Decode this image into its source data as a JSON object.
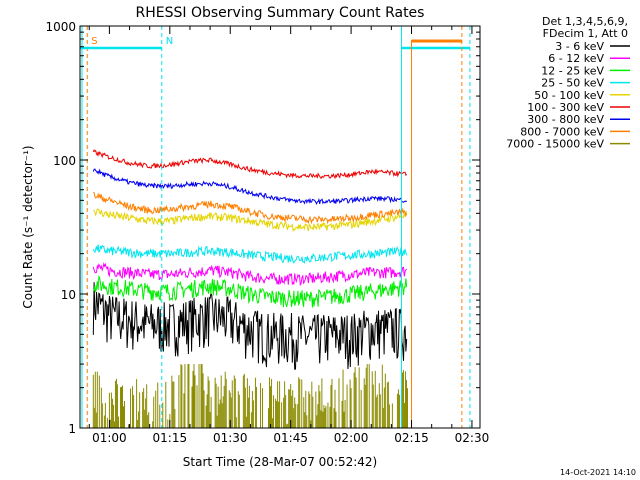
{
  "chart_data": {
    "type": "line",
    "title": "RHESSI Observing Summary Count Rates",
    "xlabel": "Start Time (28-Mar-07 00:52:42)",
    "ylabel": "Count Rate (s⁻¹ detector⁻¹)",
    "ylog": true,
    "ylim": [
      1,
      1000
    ],
    "xlim": [
      "00:52:42",
      "02:32:00"
    ],
    "x_ticks": [
      "01:00",
      "01:15",
      "01:30",
      "01:45",
      "02:00",
      "02:15",
      "02:30"
    ],
    "y_ticks": [
      "1",
      "10",
      "100",
      "1000"
    ],
    "legend_header": [
      "Det 1,3,4,5,6,9,",
      "FDecim 1, Att 0"
    ],
    "legend_position": "right",
    "markers": [
      {
        "label": "S",
        "time": "00:54:30",
        "color": "#ff7f00"
      },
      {
        "label": "N",
        "time": "01:13:00",
        "color": "#00e5ee"
      }
    ],
    "timestamp": "14-Oct-2021 14:10",
    "series": [
      {
        "name": "3 - 6 keV",
        "color": "#000000",
        "x": [
          "00:56",
          "01:00",
          "01:05",
          "01:10",
          "01:15",
          "01:20",
          "01:25",
          "01:30",
          "01:35",
          "01:40",
          "01:45",
          "01:50",
          "01:55",
          "02:00",
          "02:05",
          "02:10",
          "02:14"
        ],
        "values": [
          9,
          7,
          6.5,
          6,
          6,
          6.5,
          7,
          6.5,
          5.5,
          5,
          5,
          4.8,
          5,
          5,
          5.5,
          5.5,
          5.5
        ]
      },
      {
        "name": "6 - 12 keV",
        "color": "#ff00ff",
        "x": [
          "00:56",
          "01:00",
          "01:05",
          "01:10",
          "01:15",
          "01:20",
          "01:25",
          "01:30",
          "01:35",
          "01:40",
          "01:45",
          "01:50",
          "01:55",
          "02:00",
          "02:05",
          "02:10",
          "02:14"
        ],
        "values": [
          16,
          15,
          14.5,
          14,
          14,
          14.5,
          15,
          14.5,
          13.5,
          13,
          13,
          13,
          13.5,
          14,
          14.5,
          14.5,
          15
        ]
      },
      {
        "name": "12 - 25 keV",
        "color": "#00ee00",
        "x": [
          "00:56",
          "01:00",
          "01:05",
          "01:10",
          "01:15",
          "01:20",
          "01:25",
          "01:30",
          "01:35",
          "01:40",
          "01:45",
          "01:50",
          "01:55",
          "02:00",
          "02:05",
          "02:10",
          "02:14"
        ],
        "values": [
          12,
          11.5,
          11,
          10.5,
          10.5,
          11,
          11.5,
          11,
          10,
          9.5,
          9.3,
          9.3,
          9.6,
          10,
          10.5,
          11,
          11.5
        ]
      },
      {
        "name": "25 - 50 keV",
        "color": "#00e5ee",
        "x": [
          "00:56",
          "01:00",
          "01:05",
          "01:10",
          "01:15",
          "01:20",
          "01:25",
          "01:30",
          "01:35",
          "01:40",
          "01:45",
          "01:50",
          "01:55",
          "02:00",
          "02:05",
          "02:10",
          "02:14"
        ],
        "values": [
          22,
          21,
          20.5,
          20,
          20,
          20.5,
          21,
          20.5,
          19.5,
          19,
          18.5,
          18.5,
          19,
          19.5,
          20,
          20.5,
          21
        ]
      },
      {
        "name": "50 - 100 keV",
        "color": "#e5d400",
        "x": [
          "00:56",
          "01:00",
          "01:05",
          "01:10",
          "01:15",
          "01:20",
          "01:25",
          "01:30",
          "01:35",
          "01:40",
          "01:45",
          "01:50",
          "01:55",
          "02:00",
          "02:05",
          "02:10",
          "02:14"
        ],
        "values": [
          42,
          39,
          37,
          35,
          35,
          37,
          38,
          37,
          35,
          33,
          32,
          31.5,
          32,
          33,
          35,
          37,
          39
        ]
      },
      {
        "name": "100 - 300 keV",
        "color": "#ee0000",
        "x": [
          "00:56",
          "01:00",
          "01:05",
          "01:10",
          "01:15",
          "01:20",
          "01:25",
          "01:30",
          "01:35",
          "01:40",
          "01:45",
          "01:50",
          "01:55",
          "02:00",
          "02:05",
          "02:10",
          "02:14"
        ],
        "values": [
          115,
          105,
          95,
          90,
          92,
          98,
          100,
          93,
          85,
          80,
          77,
          76,
          76,
          78,
          82,
          80,
          78
        ]
      },
      {
        "name": "300 - 800 keV",
        "color": "#0000ee",
        "x": [
          "00:56",
          "01:00",
          "01:05",
          "01:10",
          "01:15",
          "01:20",
          "01:25",
          "01:30",
          "01:35",
          "01:40",
          "01:45",
          "01:50",
          "01:55",
          "02:00",
          "02:05",
          "02:10",
          "02:14"
        ],
        "values": [
          85,
          75,
          68,
          64,
          64,
          66,
          67,
          63,
          57,
          53,
          50,
          49,
          49,
          50,
          52,
          51,
          50
        ]
      },
      {
        "name": "800 - 7000 keV",
        "color": "#ff7f00",
        "x": [
          "00:56",
          "01:00",
          "01:05",
          "01:10",
          "01:15",
          "01:20",
          "01:25",
          "01:30",
          "01:35",
          "01:40",
          "01:45",
          "01:50",
          "01:55",
          "02:00",
          "02:05",
          "02:10",
          "02:14"
        ],
        "values": [
          55,
          50,
          45,
          42,
          43,
          45,
          47,
          45,
          41,
          38,
          37,
          36,
          36,
          37,
          39,
          40,
          41
        ]
      },
      {
        "name": "7000 - 15000 keV",
        "color": "#8b8b00",
        "x": [
          "00:56",
          "01:00",
          "01:05",
          "01:10",
          "01:15",
          "01:20",
          "01:25",
          "01:30",
          "01:35",
          "01:40",
          "01:45",
          "01:50",
          "01:55",
          "02:00",
          "02:05",
          "02:10",
          "02:14"
        ],
        "values": [
          1.8,
          1.6,
          1.5,
          1.5,
          1.6,
          2.2,
          1.8,
          1.7,
          1.6,
          1.5,
          1.5,
          1.5,
          1.6,
          1.8,
          2.0,
          1.8,
          1.7
        ]
      }
    ]
  }
}
